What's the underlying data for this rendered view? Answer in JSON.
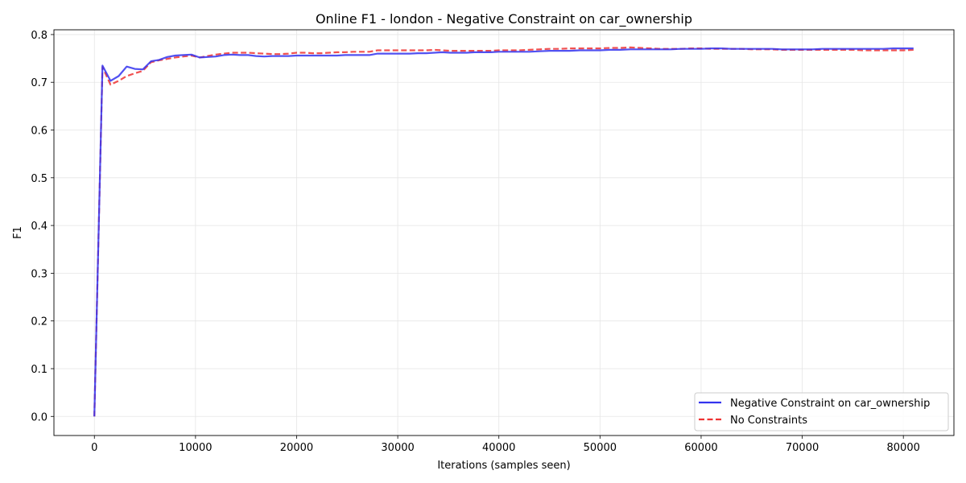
{
  "chart_data": {
    "type": "line",
    "title": "Online F1 - london - Negative Constraint on car_ownership",
    "xlabel": "Iterations (samples seen)",
    "ylabel": "F1",
    "xlim": [
      -4000,
      85000
    ],
    "ylim": [
      -0.04,
      0.81
    ],
    "xticks": [
      0,
      10000,
      20000,
      30000,
      40000,
      50000,
      60000,
      70000,
      80000
    ],
    "xtick_labels": [
      "0",
      "10000",
      "20000",
      "30000",
      "40000",
      "50000",
      "60000",
      "70000",
      "80000"
    ],
    "yticks": [
      0.0,
      0.1,
      0.2,
      0.3,
      0.4,
      0.5,
      0.6,
      0.7,
      0.8
    ],
    "ytick_labels": [
      "0.0",
      "0.1",
      "0.2",
      "0.3",
      "0.4",
      "0.5",
      "0.6",
      "0.7",
      "0.8"
    ],
    "grid": true,
    "legend_position": "bottom-right",
    "series": [
      {
        "name": "Negative Constraint on car_ownership",
        "color": "#3333ee",
        "style": "solid",
        "x": [
          0,
          800,
          1600,
          2400,
          3200,
          4000,
          4800,
          5600,
          6400,
          7200,
          8000,
          8800,
          9600,
          10400,
          11200,
          12000,
          12800,
          13600,
          14400,
          15200,
          16000,
          16800,
          17600,
          18400,
          19200,
          20000,
          20800,
          21600,
          22400,
          23200,
          24000,
          24800,
          25600,
          26400,
          27200,
          28000,
          28800,
          29600,
          30400,
          31200,
          32000,
          32800,
          33600,
          34400,
          35200,
          36000,
          36800,
          37600,
          38400,
          39200,
          40000,
          41000,
          42000,
          43000,
          44000,
          45000,
          46000,
          47000,
          48000,
          49000,
          50000,
          51000,
          52000,
          53000,
          54000,
          55000,
          56000,
          57000,
          58000,
          59000,
          60000,
          61000,
          62000,
          63000,
          64000,
          65000,
          66000,
          67000,
          68000,
          69000,
          70000,
          71000,
          72000,
          73000,
          74000,
          75000,
          76000,
          77000,
          78000,
          79000,
          80000,
          81000
        ],
        "values": [
          0.0,
          0.735,
          0.703,
          0.713,
          0.733,
          0.728,
          0.727,
          0.744,
          0.747,
          0.753,
          0.756,
          0.757,
          0.758,
          0.752,
          0.753,
          0.754,
          0.757,
          0.758,
          0.757,
          0.757,
          0.755,
          0.754,
          0.755,
          0.755,
          0.755,
          0.756,
          0.756,
          0.756,
          0.756,
          0.756,
          0.756,
          0.757,
          0.757,
          0.757,
          0.757,
          0.76,
          0.76,
          0.76,
          0.76,
          0.76,
          0.761,
          0.761,
          0.762,
          0.763,
          0.762,
          0.762,
          0.762,
          0.763,
          0.763,
          0.763,
          0.764,
          0.764,
          0.764,
          0.764,
          0.765,
          0.766,
          0.766,
          0.766,
          0.767,
          0.767,
          0.767,
          0.768,
          0.768,
          0.769,
          0.769,
          0.769,
          0.769,
          0.769,
          0.77,
          0.77,
          0.77,
          0.771,
          0.771,
          0.77,
          0.77,
          0.77,
          0.77,
          0.77,
          0.769,
          0.769,
          0.769,
          0.769,
          0.77,
          0.77,
          0.77,
          0.77,
          0.77,
          0.77,
          0.77,
          0.771,
          0.771,
          0.771
        ]
      },
      {
        "name": "No Constraints",
        "color": "#ee3333",
        "style": "dashed",
        "x": [
          0,
          800,
          1600,
          2400,
          3200,
          4000,
          4800,
          5600,
          6400,
          7200,
          8000,
          8800,
          9600,
          10400,
          11200,
          12000,
          12800,
          13600,
          14400,
          15200,
          16000,
          16800,
          17600,
          18400,
          19200,
          20000,
          20800,
          21600,
          22400,
          23200,
          24000,
          24800,
          25600,
          26400,
          27200,
          28000,
          28800,
          29600,
          30400,
          31200,
          32000,
          32800,
          33600,
          34400,
          35200,
          36000,
          36800,
          37600,
          38400,
          39200,
          40000,
          41000,
          42000,
          43000,
          44000,
          45000,
          46000,
          47000,
          48000,
          49000,
          50000,
          51000,
          52000,
          53000,
          54000,
          55000,
          56000,
          57000,
          58000,
          59000,
          60000,
          61000,
          62000,
          63000,
          64000,
          65000,
          66000,
          67000,
          68000,
          69000,
          70000,
          71000,
          72000,
          73000,
          74000,
          75000,
          76000,
          77000,
          78000,
          79000,
          80000,
          81000
        ],
        "values": [
          0.0,
          0.732,
          0.695,
          0.703,
          0.713,
          0.719,
          0.724,
          0.742,
          0.746,
          0.749,
          0.752,
          0.754,
          0.756,
          0.752,
          0.755,
          0.758,
          0.76,
          0.762,
          0.762,
          0.762,
          0.761,
          0.76,
          0.759,
          0.759,
          0.76,
          0.762,
          0.762,
          0.761,
          0.761,
          0.762,
          0.763,
          0.763,
          0.764,
          0.764,
          0.764,
          0.767,
          0.767,
          0.767,
          0.767,
          0.767,
          0.767,
          0.767,
          0.768,
          0.767,
          0.766,
          0.766,
          0.766,
          0.766,
          0.766,
          0.766,
          0.767,
          0.767,
          0.767,
          0.768,
          0.769,
          0.77,
          0.77,
          0.771,
          0.771,
          0.771,
          0.771,
          0.772,
          0.772,
          0.773,
          0.772,
          0.771,
          0.77,
          0.77,
          0.77,
          0.771,
          0.771,
          0.77,
          0.77,
          0.77,
          0.77,
          0.769,
          0.769,
          0.769,
          0.768,
          0.768,
          0.768,
          0.768,
          0.768,
          0.768,
          0.768,
          0.768,
          0.767,
          0.767,
          0.767,
          0.767,
          0.767,
          0.768
        ]
      }
    ]
  }
}
